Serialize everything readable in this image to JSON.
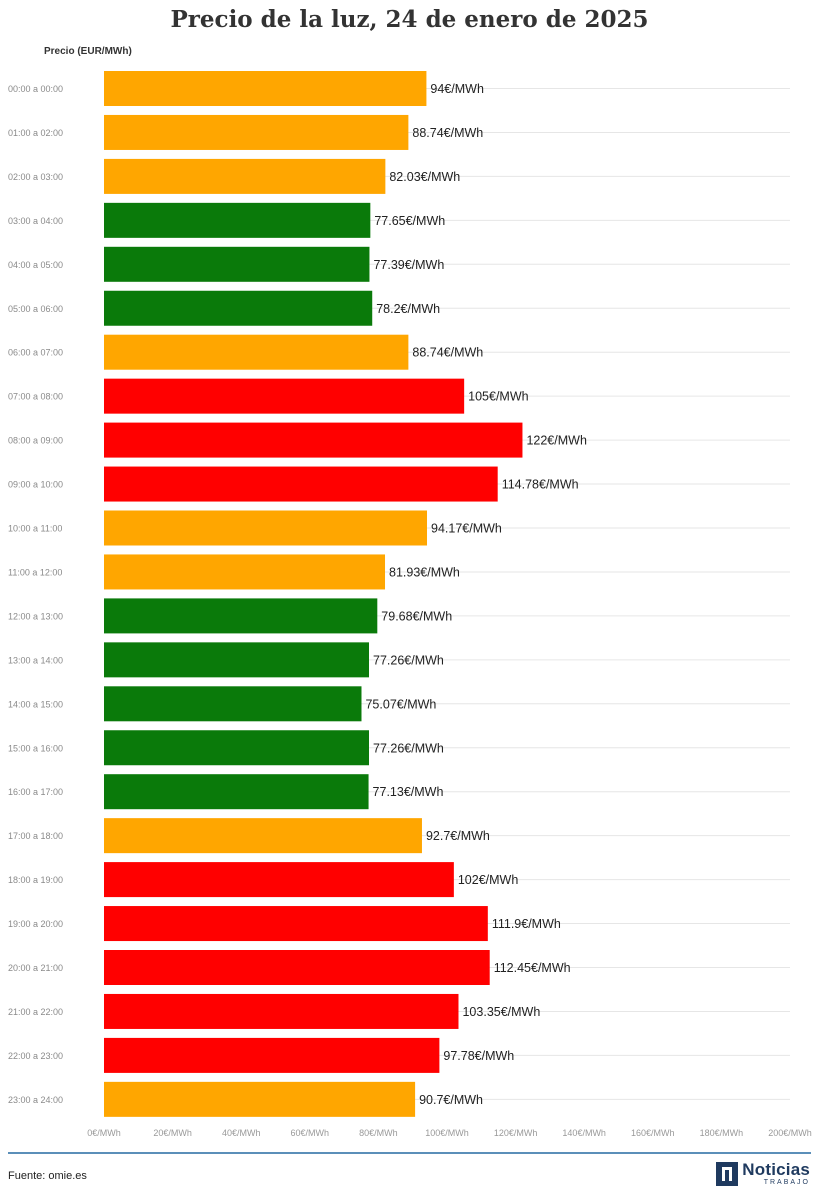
{
  "colors": {
    "low": "#0a7a0a",
    "mid": "#ffa600",
    "high": "#ff0000",
    "grid": "#e6e6e6",
    "tick_text": "#999999",
    "category_text": "#8a8a8a"
  },
  "footer": {
    "source": "Fuente: omie.es",
    "logo_word": "Noticias",
    "logo_sub": "TRABAJO",
    "logo_icon": "n-square-logo-icon"
  },
  "chart_data": {
    "type": "bar",
    "orientation": "horizontal",
    "title": "Precio de la luz, 24 de enero de 2025",
    "ylabel": "Precio (EUR/MWh)",
    "xlim": [
      0,
      200
    ],
    "grid": true,
    "value_suffix": "€/MWh",
    "x_ticks": [
      "0€/MWh",
      "20€/MWh",
      "40€/MWh",
      "60€/MWh",
      "80€/MWh",
      "100€/MWh",
      "120€/MWh",
      "140€/MWh",
      "160€/MWh",
      "180€/MWh",
      "200€/MWh"
    ],
    "x_tick_values": [
      0,
      20,
      40,
      60,
      80,
      100,
      120,
      140,
      160,
      180,
      200
    ],
    "categories": [
      "00:00 a 00:00",
      "01:00 a 02:00",
      "02:00 a 03:00",
      "03:00 a 04:00",
      "04:00 a 05:00",
      "05:00 a 06:00",
      "06:00 a 07:00",
      "07:00 a 08:00",
      "08:00 a 09:00",
      "09:00 a 10:00",
      "10:00 a 11:00",
      "11:00 a 12:00",
      "12:00 a 13:00",
      "13:00 a 14:00",
      "14:00 a 15:00",
      "15:00 a 16:00",
      "16:00 a 17:00",
      "17:00 a 18:00",
      "18:00 a 19:00",
      "19:00 a 20:00",
      "20:00 a 21:00",
      "21:00 a 22:00",
      "22:00 a 23:00",
      "23:00 a 24:00"
    ],
    "values": [
      94,
      88.74,
      82.03,
      77.65,
      77.39,
      78.2,
      88.74,
      105,
      122,
      114.78,
      94.17,
      81.93,
      79.68,
      77.26,
      75.07,
      77.26,
      77.13,
      92.7,
      102,
      111.9,
      112.45,
      103.35,
      97.78,
      90.7
    ],
    "labels": [
      "94€/MWh",
      "88.74€/MWh",
      "82.03€/MWh",
      "77.65€/MWh",
      "77.39€/MWh",
      "78.2€/MWh",
      "88.74€/MWh",
      "105€/MWh",
      "122€/MWh",
      "114.78€/MWh",
      "94.17€/MWh",
      "81.93€/MWh",
      "79.68€/MWh",
      "77.26€/MWh",
      "75.07€/MWh",
      "77.26€/MWh",
      "77.13€/MWh",
      "92.7€/MWh",
      "102€/MWh",
      "111.9€/MWh",
      "112.45€/MWh",
      "103.35€/MWh",
      "97.78€/MWh",
      "90.7€/MWh"
    ],
    "bar_levels": [
      "mid",
      "mid",
      "mid",
      "low",
      "low",
      "low",
      "mid",
      "high",
      "high",
      "high",
      "mid",
      "mid",
      "low",
      "low",
      "low",
      "low",
      "low",
      "mid",
      "high",
      "high",
      "high",
      "high",
      "high",
      "mid"
    ]
  }
}
